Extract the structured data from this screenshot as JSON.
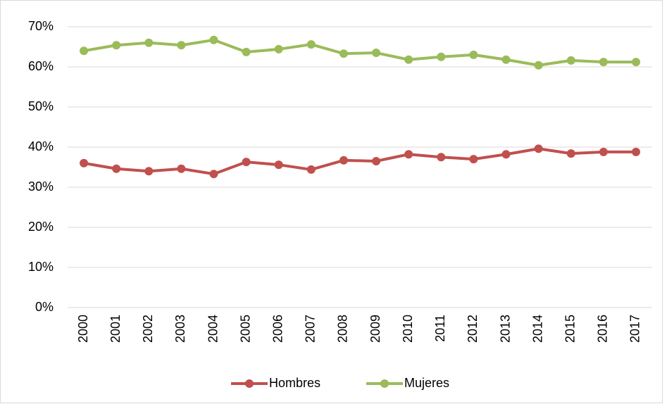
{
  "chart_data": {
    "type": "line",
    "categories": [
      "2000",
      "2001",
      "2002",
      "2003",
      "2004",
      "2005",
      "2006",
      "2007",
      "2008",
      "2009",
      "2010",
      "2011",
      "2012",
      "2013",
      "2014",
      "2015",
      "2016",
      "2017"
    ],
    "series": [
      {
        "name": "Hombres",
        "color": "#c0504d",
        "values": [
          36.0,
          34.6,
          34.0,
          34.6,
          33.3,
          36.3,
          35.6,
          34.4,
          36.7,
          36.5,
          38.2,
          37.5,
          37.0,
          38.2,
          39.6,
          38.4,
          38.8,
          38.8
        ]
      },
      {
        "name": "Mujeres",
        "color": "#9bbb59",
        "values": [
          64.0,
          65.4,
          66.0,
          65.4,
          66.7,
          63.7,
          64.4,
          65.6,
          63.3,
          63.5,
          61.8,
          62.5,
          63.0,
          61.8,
          60.4,
          61.6,
          61.2,
          61.2
        ]
      }
    ],
    "ylim": [
      0,
      70
    ],
    "yticks": [
      {
        "value": 0,
        "label": "0%"
      },
      {
        "value": 10,
        "label": "10%"
      },
      {
        "value": 20,
        "label": "20%"
      },
      {
        "value": 30,
        "label": "30%"
      },
      {
        "value": 40,
        "label": "40%"
      },
      {
        "value": 50,
        "label": "50%"
      },
      {
        "value": 60,
        "label": "60%"
      },
      {
        "value": 70,
        "label": "70%"
      }
    ],
    "grid": true,
    "legend": "bottom"
  }
}
